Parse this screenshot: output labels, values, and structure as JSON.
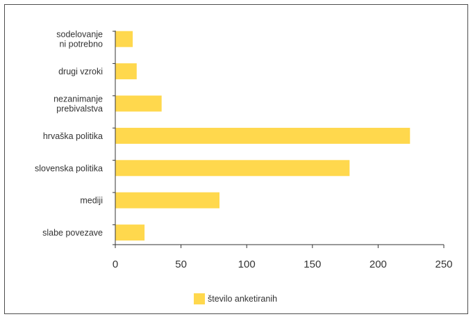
{
  "chart_data": {
    "type": "bar",
    "orientation": "horizontal",
    "categories": [
      [
        "sodelovanje",
        "ni potrebno"
      ],
      [
        "drugi vzroki"
      ],
      [
        "nezanimanje",
        "prebivalstva"
      ],
      [
        "hrvaška politika"
      ],
      [
        "slovenska politika"
      ],
      [
        "mediji"
      ],
      [
        "slabe povezave"
      ]
    ],
    "series": [
      {
        "name": "število anketiranih",
        "values": [
          13,
          16,
          35,
          224,
          178,
          79,
          22
        ]
      }
    ],
    "xlim": [
      0,
      250
    ],
    "xticks": [
      "0",
      "50",
      "100",
      "150",
      "200",
      "250"
    ],
    "legend_position": "bottom",
    "bar_color": "#ffd84d",
    "grid": false
  }
}
